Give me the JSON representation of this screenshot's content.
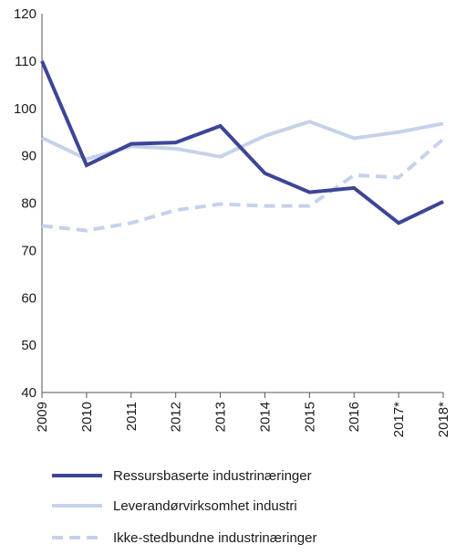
{
  "chart_data": {
    "type": "line",
    "categories": [
      "2009",
      "2010",
      "2011",
      "2012",
      "2013",
      "2014",
      "2015",
      "2016",
      "2017*",
      "2018*"
    ],
    "ylim": [
      40,
      120
    ],
    "yticks": [
      40,
      50,
      60,
      70,
      80,
      90,
      100,
      110,
      120
    ],
    "grid": false,
    "legend_placement": "bottom",
    "series": [
      {
        "name": "Ressursbaserte industrinæringer",
        "values": [
          110,
          88,
          92.5,
          92.8,
          96.3,
          86.3,
          82.3,
          83.2,
          75.8,
          80.3
        ],
        "color": "#3d4596",
        "style": "solid"
      },
      {
        "name": "Leverandørvirksomhet industri",
        "values": [
          93.8,
          89.3,
          92,
          91.5,
          89.8,
          94.2,
          97.2,
          93.7,
          95,
          96.8
        ],
        "color": "#c6d2ea",
        "style": "solid"
      },
      {
        "name": "Ikke-stedbundne industrinæringer",
        "values": [
          75.2,
          74.2,
          75.8,
          78.5,
          79.8,
          79.4,
          79.4,
          85.9,
          85.4,
          93.5
        ],
        "color": "#c6d2ea",
        "style": "dashed"
      }
    ]
  }
}
